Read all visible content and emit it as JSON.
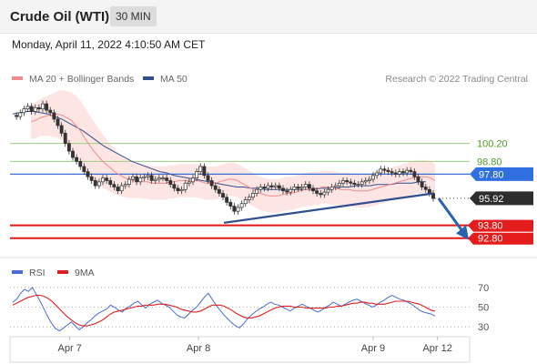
{
  "header": {
    "title": "Crude Oil (WTI)",
    "timeframe": "30 MIN"
  },
  "timestamp": "Monday, April 11, 2022 4:10:50 AM CET",
  "chart_data": {
    "type": "line",
    "price_panel": {
      "legend": [
        {
          "name": "MA 20 + Bollinger Bands",
          "color": "#f28a8a"
        },
        {
          "name": "MA 50",
          "color": "#2f4f8f"
        }
      ],
      "credit": "Research © 2022 Trading Central",
      "ylim": [
        91.5,
        104.3
      ],
      "levels": [
        {
          "label": "100.20",
          "value": 100.2,
          "style": "green-line"
        },
        {
          "label": "98.80",
          "value": 98.8,
          "style": "green-line"
        },
        {
          "label": "97.80",
          "value": 97.8,
          "style": "blue-tag"
        },
        {
          "label": "95.92",
          "value": 95.92,
          "style": "dark-tag"
        },
        {
          "label": "93.80",
          "value": 93.8,
          "style": "red-tag"
        },
        {
          "label": "92.80",
          "value": 92.8,
          "style": "red-tag"
        }
      ],
      "close_series": [
        102.4,
        102.3,
        102.6,
        102.9,
        103.1,
        102.7,
        103.0,
        102.9,
        103.3,
        102.8,
        102.6,
        102.1,
        101.6,
        101.0,
        100.2,
        99.6,
        99.1,
        98.8,
        98.4,
        98.0,
        97.6,
        97.3,
        96.9,
        97.2,
        97.5,
        97.3,
        97.0,
        96.8,
        96.5,
        96.9,
        97.0,
        97.4,
        97.6,
        97.2,
        97.5,
        97.6,
        97.7,
        97.3,
        97.4,
        97.5,
        97.5,
        97.3,
        97.0,
        96.7,
        96.5,
        96.6,
        97.1,
        97.2,
        97.5,
        98.0,
        98.4,
        97.7,
        97.3,
        96.9,
        96.6,
        96.3,
        96.0,
        95.6,
        95.3,
        94.9,
        95.2,
        95.5,
        95.8,
        96.0,
        96.3,
        96.6,
        96.8,
        96.7,
        96.9,
        96.8,
        96.9,
        96.7,
        96.5,
        96.4,
        96.6,
        96.8,
        96.7,
        96.8,
        97.0,
        96.7,
        96.5,
        96.3,
        96.2,
        96.4,
        96.6,
        96.8,
        96.9,
        97.1,
        97.3,
        97.2,
        97.1,
        97.0,
        97.0,
        97.2,
        97.3,
        97.4,
        97.7,
        97.9,
        98.2,
        98.1,
        98.0,
        97.9,
        97.8,
        98.0,
        97.9,
        98.1,
        98.0,
        97.6,
        97.2,
        96.8,
        96.6,
        96.3,
        95.9
      ],
      "ma20": [
        101.9,
        102.0,
        102.2,
        102.3,
        102.4,
        102.4,
        102.5,
        102.4,
        102.2,
        102.0,
        101.6,
        101.2,
        100.6,
        100.1,
        99.6,
        99.2,
        98.8,
        98.5,
        98.2,
        97.9,
        97.7,
        97.5,
        97.4,
        97.3,
        97.3,
        97.2,
        97.2,
        97.1,
        97.1,
        97.1,
        97.1,
        97.2,
        97.2,
        97.3,
        97.3,
        97.3,
        97.3,
        97.3,
        97.2,
        97.1,
        97.1,
        97.1,
        97.2,
        97.3,
        97.4,
        97.4,
        97.3,
        97.1,
        96.9,
        96.7,
        96.5,
        96.3,
        96.2,
        96.1,
        96.1,
        96.1,
        96.2,
        96.3,
        96.3,
        96.4,
        96.5,
        96.6,
        96.6,
        96.7,
        96.7,
        96.8,
        96.8,
        96.7,
        96.7,
        96.6,
        96.6,
        96.6,
        96.5,
        96.5,
        96.5,
        96.5,
        96.6,
        96.7,
        96.8,
        96.9,
        97.0,
        97.1,
        97.2,
        97.3,
        97.4,
        97.5,
        97.6,
        97.6,
        97.6,
        97.5,
        97.3
      ],
      "ma50": [
        102.5,
        102.6,
        102.7,
        102.7,
        102.6,
        102.5,
        102.3,
        102.1,
        101.8,
        101.5,
        101.2,
        100.8,
        100.4,
        100.0,
        99.7,
        99.4,
        99.1,
        98.8,
        98.6,
        98.4,
        98.2,
        98.0,
        97.9,
        97.7,
        97.6,
        97.5,
        97.4,
        97.3,
        97.2,
        97.1,
        97.0,
        96.9,
        96.8,
        96.8,
        96.7,
        96.7,
        96.6,
        96.6,
        96.6,
        96.6,
        96.6,
        96.6,
        96.6,
        96.6,
        96.7,
        96.7,
        96.7,
        96.8,
        96.8,
        96.9,
        96.9,
        96.9,
        97.0,
        97.0,
        97.0,
        97.1,
        97.1,
        97.1,
        97.2,
        97.2
      ],
      "trendline": {
        "from": 94.0,
        "to": 96.3
      },
      "forecast_arrow": {
        "from": 95.9,
        "to": 93.1
      }
    },
    "rsi_panel": {
      "legend": [
        {
          "name": "RSI",
          "color": "#4a6cd6"
        },
        {
          "name": "9MA",
          "color": "#e02020"
        }
      ],
      "ylim": [
        20,
        80
      ],
      "ticks": [
        70,
        50,
        30
      ],
      "rsi": [
        55,
        58,
        64,
        68,
        66,
        70,
        63,
        56,
        48,
        40,
        33,
        28,
        26,
        29,
        32,
        35,
        31,
        27,
        30,
        34,
        37,
        41,
        44,
        46,
        48,
        52,
        50,
        47,
        45,
        49,
        51,
        54,
        56,
        52,
        49,
        53,
        55,
        57,
        54,
        52,
        50,
        46,
        42,
        40,
        39,
        43,
        47,
        50,
        55,
        60,
        64,
        58,
        52,
        47,
        42,
        38,
        34,
        31,
        29,
        33,
        38,
        42,
        45,
        48,
        50,
        53,
        55,
        53,
        52,
        50,
        48,
        46,
        49,
        51,
        53,
        51,
        49,
        47,
        45,
        47,
        50,
        52,
        55,
        53,
        51,
        53,
        55,
        57,
        58,
        56,
        54,
        52,
        50,
        52,
        55,
        57,
        60,
        62,
        60,
        58,
        57,
        55,
        53,
        50,
        47,
        45,
        44,
        43,
        41
      ],
      "ma9": [
        52,
        54,
        56,
        58,
        60,
        61,
        62,
        62,
        61,
        59,
        56,
        52,
        48,
        44,
        40,
        37,
        34,
        32,
        31,
        31,
        32,
        33,
        35,
        37,
        40,
        43,
        45,
        46,
        47,
        48,
        49,
        50,
        51,
        51,
        52,
        52,
        52,
        53,
        53,
        53,
        52,
        51,
        50,
        48,
        47,
        46,
        45,
        45,
        46,
        48,
        50,
        52,
        52,
        52,
        51,
        49,
        47,
        44,
        42,
        40,
        39,
        39,
        40,
        41,
        43,
        45,
        47,
        49,
        50,
        51,
        51,
        51,
        50,
        50,
        50,
        49,
        49,
        49,
        49,
        49,
        49,
        50,
        50,
        51,
        51,
        52,
        53,
        54,
        54,
        55,
        55,
        54,
        54,
        53,
        53,
        53,
        54,
        55,
        56,
        56,
        56,
        56,
        55,
        54,
        53,
        51,
        49,
        47,
        46
      ]
    },
    "x_ticks": [
      {
        "label": "Apr 7",
        "x": 0.13
      },
      {
        "label": "Apr 8",
        "x": 0.41
      },
      {
        "label": "Apr 9",
        "x": 0.79
      },
      {
        "label": "Apr 12",
        "x": 0.93
      }
    ]
  }
}
